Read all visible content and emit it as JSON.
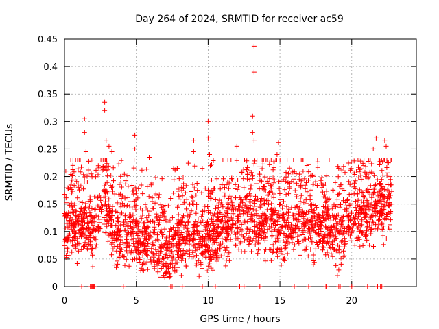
{
  "chart_data": {
    "type": "scatter",
    "title": "Day 264 of 2024, SRMTID for receiver ac59",
    "xlabel": "GPS time / hours",
    "ylabel": "SRMTID / TECUs",
    "xlim": [
      0,
      24.5
    ],
    "ylim": [
      0,
      0.45
    ],
    "x_ticks": [
      0,
      5,
      10,
      15,
      20
    ],
    "x_tick_labels": [
      "0",
      "5",
      "10",
      "15",
      "20"
    ],
    "y_ticks": [
      0,
      0.05,
      0.1,
      0.15,
      0.2,
      0.25,
      0.3,
      0.35,
      0.4,
      0.45
    ],
    "y_tick_labels": [
      "0",
      "0.05",
      "0.1",
      "0.15",
      "0.2",
      "0.25",
      "0.3",
      "0.35",
      "0.4",
      "0.45"
    ],
    "grid": true,
    "marker": "plus",
    "color": "#ff0000",
    "series": [
      {
        "name": "SRMTID",
        "x_range_hours": [
          0,
          22.8
        ],
        "baseline_profile": [
          {
            "x": 0.0,
            "y": 0.1
          },
          {
            "x": 1.0,
            "y": 0.11
          },
          {
            "x": 2.0,
            "y": 0.1
          },
          {
            "x": 2.8,
            "y": 0.15
          },
          {
            "x": 3.5,
            "y": 0.09
          },
          {
            "x": 5.0,
            "y": 0.09
          },
          {
            "x": 6.0,
            "y": 0.08
          },
          {
            "x": 7.0,
            "y": 0.05
          },
          {
            "x": 8.0,
            "y": 0.08
          },
          {
            "x": 9.0,
            "y": 0.09
          },
          {
            "x": 10.0,
            "y": 0.08
          },
          {
            "x": 11.0,
            "y": 0.1
          },
          {
            "x": 12.0,
            "y": 0.11
          },
          {
            "x": 13.0,
            "y": 0.12
          },
          {
            "x": 14.0,
            "y": 0.11
          },
          {
            "x": 15.0,
            "y": 0.1
          },
          {
            "x": 16.0,
            "y": 0.11
          },
          {
            "x": 17.0,
            "y": 0.11
          },
          {
            "x": 18.0,
            "y": 0.1
          },
          {
            "x": 19.0,
            "y": 0.09
          },
          {
            "x": 20.0,
            "y": 0.13
          },
          {
            "x": 21.0,
            "y": 0.13
          },
          {
            "x": 22.0,
            "y": 0.14
          },
          {
            "x": 22.8,
            "y": 0.15
          }
        ],
        "outliers": [
          {
            "x": 1.4,
            "y": 0.305
          },
          {
            "x": 1.4,
            "y": 0.28
          },
          {
            "x": 1.5,
            "y": 0.245
          },
          {
            "x": 2.8,
            "y": 0.335
          },
          {
            "x": 2.8,
            "y": 0.32
          },
          {
            "x": 2.9,
            "y": 0.265
          },
          {
            "x": 3.1,
            "y": 0.255
          },
          {
            "x": 3.3,
            "y": 0.245
          },
          {
            "x": 4.9,
            "y": 0.275
          },
          {
            "x": 4.9,
            "y": 0.25
          },
          {
            "x": 5.9,
            "y": 0.235
          },
          {
            "x": 9.0,
            "y": 0.265
          },
          {
            "x": 9.0,
            "y": 0.245
          },
          {
            "x": 10.0,
            "y": 0.3
          },
          {
            "x": 10.0,
            "y": 0.27
          },
          {
            "x": 10.1,
            "y": 0.24
          },
          {
            "x": 12.0,
            "y": 0.255
          },
          {
            "x": 13.2,
            "y": 0.437
          },
          {
            "x": 13.2,
            "y": 0.39
          },
          {
            "x": 13.1,
            "y": 0.31
          },
          {
            "x": 13.1,
            "y": 0.28
          },
          {
            "x": 13.2,
            "y": 0.265
          },
          {
            "x": 14.9,
            "y": 0.262
          },
          {
            "x": 14.8,
            "y": 0.24
          },
          {
            "x": 19.0,
            "y": 0.02
          },
          {
            "x": 19.1,
            "y": 0.03
          },
          {
            "x": 21.7,
            "y": 0.27
          },
          {
            "x": 21.5,
            "y": 0.25
          },
          {
            "x": 22.3,
            "y": 0.265
          },
          {
            "x": 22.4,
            "y": 0.255
          },
          {
            "x": 22.5,
            "y": 0.225
          }
        ],
        "zero_values_at_hours": [
          1.2,
          1.8,
          1.85,
          1.9,
          1.95,
          2.0,
          2.05,
          2.1,
          4.1,
          7.4,
          7.5,
          8.2,
          9.6,
          10.5,
          12.2,
          12.5,
          13.6,
          16.0,
          17.0,
          18.2,
          18.25,
          19.1,
          19.2,
          20.0,
          21.1,
          21.8,
          22.0,
          22.1
        ]
      }
    ]
  }
}
